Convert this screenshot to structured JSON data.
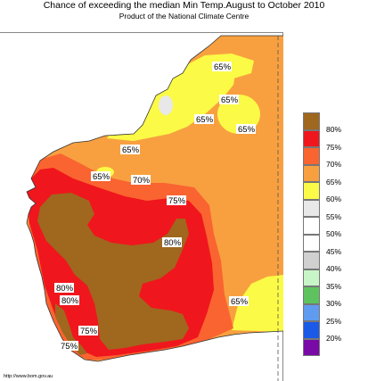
{
  "header": {
    "title": "Chance of exceeding the median Min Temp.August to October 2010",
    "subtitle": "Product of the National Climate Centre"
  },
  "map": {
    "region_labels": [
      {
        "text": "65%"
      },
      {
        "text": "65%"
      },
      {
        "text": "65%"
      },
      {
        "text": "65%"
      },
      {
        "text": "65%"
      },
      {
        "text": "65%"
      },
      {
        "text": "70%"
      },
      {
        "text": "75%"
      },
      {
        "text": "80%"
      },
      {
        "text": "80%"
      },
      {
        "text": "80%"
      },
      {
        "text": "75%"
      },
      {
        "text": "75%"
      },
      {
        "text": "65%"
      }
    ],
    "colors": {
      "ocean": "#ffffff",
      "p80": "#a0671e",
      "p75": "#f0161d",
      "p70": "#fa6430",
      "p65": "#f8a040",
      "p60": "#fbfa46",
      "p55": "#e8e8e8",
      "boundary": "#555555"
    }
  },
  "legend": {
    "items": [
      {
        "label": "80%",
        "color": "#a0671e"
      },
      {
        "label": "75%",
        "color": "#f0161d"
      },
      {
        "label": "70%",
        "color": "#fa6430"
      },
      {
        "label": "65%",
        "color": "#f8a040"
      },
      {
        "label": "60%",
        "color": "#fbfa46"
      },
      {
        "label": "55%",
        "color": "#e8e8e8"
      },
      {
        "label": "50%",
        "color": "#ffffff"
      },
      {
        "label": "45%",
        "color": "#ffffff"
      },
      {
        "label": "40%",
        "color": "#d0d0d0"
      },
      {
        "label": "35%",
        "color": "#c8f5c8"
      },
      {
        "label": "30%",
        "color": "#5ec35e"
      },
      {
        "label": "25%",
        "color": "#5f9cf0"
      },
      {
        "label": "20%",
        "color": "#1b5ae8"
      },
      {
        "label": "",
        "color": "#7a0aa8"
      }
    ]
  },
  "footer": {
    "credit": "http://www.bom.gov.au"
  }
}
